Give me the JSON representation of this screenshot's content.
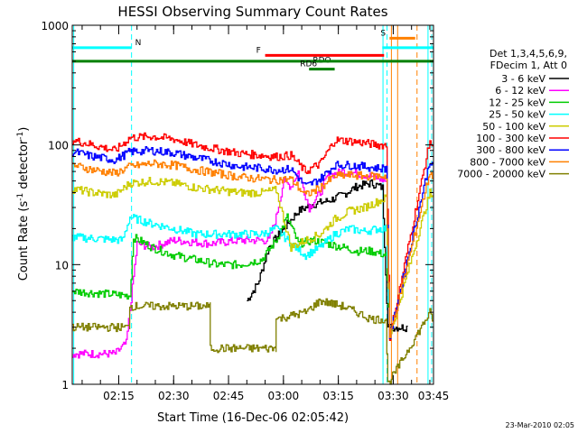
{
  "chart_data": {
    "type": "line",
    "title": "HESSI Observing Summary Count Rates",
    "xlabel": "Start Time (16-Dec-06 02:05:42)",
    "ylabel_main": "Count Rate (s",
    "ylabel_sup1": "-1",
    "ylabel_mid": " detector",
    "ylabel_sup2": "-1",
    "ylabel_end": ")",
    "yscale": "log",
    "ylim": [
      1,
      1000
    ],
    "xlim_minutes": [
      2.3,
      101.0
    ],
    "x_ticks": [
      {
        "t": 15,
        "label": "02:15"
      },
      {
        "t": 30,
        "label": "02:30"
      },
      {
        "t": 45,
        "label": "02:45"
      },
      {
        "t": 60,
        "label": "03:00"
      },
      {
        "t": 75,
        "label": "03:15"
      },
      {
        "t": 90,
        "label": "03:30"
      },
      {
        "t": 105,
        "label": "03:45"
      }
    ],
    "y_ticks": [
      {
        "v": 1,
        "label": "1"
      },
      {
        "v": 10,
        "label": "10"
      },
      {
        "v": 100,
        "label": "100"
      },
      {
        "v": 1000,
        "label": "1000"
      }
    ],
    "legend_header": [
      "Det 1,3,4,5,6,9,",
      "FDecim 1, Att 0"
    ],
    "legend_position": "right",
    "series": [
      {
        "name": "3 - 6 keV",
        "color": "#000000",
        "points": [
          [
            50,
            5
          ],
          [
            53,
            7
          ],
          [
            56,
            14
          ],
          [
            60,
            20
          ],
          [
            64,
            28
          ],
          [
            68,
            32
          ],
          [
            72,
            34
          ],
          [
            76,
            38
          ],
          [
            80,
            45
          ],
          [
            84,
            48
          ],
          [
            87,
            44
          ],
          [
            88.5,
            3
          ],
          [
            94,
            3
          ]
        ]
      },
      {
        "name": "6 - 12 keV",
        "color": "#ff00ff",
        "points": [
          [
            2.3,
            1.8
          ],
          [
            14,
            1.8
          ],
          [
            17,
            2.2
          ],
          [
            20,
            15
          ],
          [
            24,
            14
          ],
          [
            30,
            16
          ],
          [
            40,
            15
          ],
          [
            48,
            16
          ],
          [
            56,
            16
          ],
          [
            58,
            25
          ],
          [
            60,
            50
          ],
          [
            62,
            45
          ],
          [
            64,
            60
          ],
          [
            67,
            30
          ],
          [
            70,
            40
          ],
          [
            72,
            55
          ],
          [
            76,
            60
          ],
          [
            80,
            58
          ],
          [
            84,
            55
          ],
          [
            88,
            50
          ],
          [
            89,
            2.5
          ]
        ]
      },
      {
        "name": "12 - 25 keV",
        "color": "#00cc00",
        "points": [
          [
            2.3,
            6
          ],
          [
            18,
            5.5
          ],
          [
            19,
            17
          ],
          [
            24,
            14
          ],
          [
            30,
            12
          ],
          [
            36,
            11
          ],
          [
            42,
            10
          ],
          [
            48,
            10
          ],
          [
            54,
            11
          ],
          [
            58,
            16
          ],
          [
            61,
            25
          ],
          [
            64,
            15
          ],
          [
            68,
            16
          ],
          [
            72,
            15
          ],
          [
            76,
            14
          ],
          [
            80,
            13
          ],
          [
            84,
            13
          ],
          [
            88,
            12
          ],
          [
            89,
            2.5
          ]
        ]
      },
      {
        "name": "25 - 50 keV",
        "color": "#00ffff",
        "points": [
          [
            2.3,
            17
          ],
          [
            16,
            16
          ],
          [
            18,
            25
          ],
          [
            24,
            22
          ],
          [
            30,
            20
          ],
          [
            36,
            18
          ],
          [
            42,
            18
          ],
          [
            48,
            18
          ],
          [
            54,
            18
          ],
          [
            58,
            20
          ],
          [
            62,
            15
          ],
          [
            66,
            12
          ],
          [
            70,
            14
          ],
          [
            74,
            18
          ],
          [
            78,
            20
          ],
          [
            82,
            19
          ],
          [
            86,
            20
          ],
          [
            88,
            20
          ],
          [
            89,
            2.5
          ]
        ]
      },
      {
        "name": "50 - 100 keV",
        "color": "#cccc00",
        "points": [
          [
            2.3,
            43
          ],
          [
            8,
            40
          ],
          [
            14,
            38
          ],
          [
            18,
            48
          ],
          [
            24,
            50
          ],
          [
            30,
            48
          ],
          [
            36,
            44
          ],
          [
            42,
            42
          ],
          [
            48,
            40
          ],
          [
            54,
            40
          ],
          [
            58,
            42
          ],
          [
            62,
            14
          ],
          [
            66,
            16
          ],
          [
            70,
            18
          ],
          [
            74,
            24
          ],
          [
            78,
            28
          ],
          [
            82,
            30
          ],
          [
            86,
            34
          ],
          [
            88,
            36
          ],
          [
            89,
            2.5
          ],
          [
            100,
            40
          ],
          [
            101,
            33
          ]
        ]
      },
      {
        "name": "100 - 300 keV",
        "color": "#ff0000",
        "points": [
          [
            2.3,
            110
          ],
          [
            8,
            100
          ],
          [
            14,
            90
          ],
          [
            18,
            115
          ],
          [
            24,
            118
          ],
          [
            30,
            112
          ],
          [
            36,
            100
          ],
          [
            42,
            92
          ],
          [
            48,
            85
          ],
          [
            54,
            82
          ],
          [
            58,
            80
          ],
          [
            62,
            82
          ],
          [
            66,
            60
          ],
          [
            70,
            70
          ],
          [
            74,
            110
          ],
          [
            78,
            108
          ],
          [
            82,
            104
          ],
          [
            86,
            100
          ],
          [
            88,
            100
          ],
          [
            89,
            2.5
          ],
          [
            100,
            110
          ],
          [
            101,
            85
          ]
        ]
      },
      {
        "name": "300 - 800 keV",
        "color": "#0000ff",
        "points": [
          [
            2.3,
            88
          ],
          [
            8,
            80
          ],
          [
            14,
            75
          ],
          [
            18,
            88
          ],
          [
            24,
            90
          ],
          [
            30,
            86
          ],
          [
            36,
            78
          ],
          [
            42,
            72
          ],
          [
            48,
            66
          ],
          [
            54,
            64
          ],
          [
            58,
            62
          ],
          [
            62,
            63
          ],
          [
            66,
            45
          ],
          [
            70,
            52
          ],
          [
            74,
            68
          ],
          [
            78,
            68
          ],
          [
            82,
            66
          ],
          [
            86,
            64
          ],
          [
            88,
            64
          ],
          [
            89,
            2.5
          ],
          [
            100,
            75
          ],
          [
            101,
            62
          ]
        ]
      },
      {
        "name": "800 - 7000 keV",
        "color": "#ff8000",
        "points": [
          [
            2.3,
            68
          ],
          [
            8,
            62
          ],
          [
            14,
            58
          ],
          [
            18,
            66
          ],
          [
            24,
            70
          ],
          [
            30,
            68
          ],
          [
            36,
            62
          ],
          [
            42,
            58
          ],
          [
            48,
            54
          ],
          [
            54,
            52
          ],
          [
            58,
            51
          ],
          [
            62,
            52
          ],
          [
            66,
            38
          ],
          [
            70,
            44
          ],
          [
            74,
            55
          ],
          [
            78,
            56
          ],
          [
            82,
            55
          ],
          [
            86,
            55
          ],
          [
            88,
            55
          ],
          [
            89,
            2.5
          ],
          [
            100,
            60
          ],
          [
            101,
            52
          ]
        ]
      },
      {
        "name": "7000 - 20000 keV",
        "color": "#808000",
        "points": [
          [
            2.3,
            3
          ],
          [
            18,
            3
          ],
          [
            18,
            4.5
          ],
          [
            40,
            4.5
          ],
          [
            40,
            2
          ],
          [
            58,
            2
          ],
          [
            58,
            3.5
          ],
          [
            66,
            4
          ],
          [
            70,
            5
          ],
          [
            76,
            4.5
          ],
          [
            80,
            4
          ],
          [
            84,
            3.5
          ],
          [
            88,
            3.5
          ],
          [
            88.5,
            1
          ],
          [
            100,
            4
          ],
          [
            101,
            3
          ]
        ]
      }
    ],
    "markers": [
      {
        "label": "N",
        "color": "#00ffff",
        "t0": 2.3,
        "t1": 18.5,
        "level": 650
      },
      {
        "label": "",
        "color": "#00ffff",
        "t0": 87,
        "t1": 101,
        "level": 650
      },
      {
        "label": "S",
        "color": "#ff8000",
        "t0": 89,
        "t1": 96,
        "level": 780
      },
      {
        "label": "F",
        "color": "#ff0000",
        "t0": 55,
        "t1": 87.5,
        "level": 560
      },
      {
        "label": "RDO",
        "color": "#ff0000",
        "t0": 70,
        "t1": 70,
        "level": 560
      },
      {
        "label": "",
        "color": "#008000",
        "t0": 2.3,
        "t1": 101,
        "level": 500
      },
      {
        "label": "RD6",
        "color": "#008000",
        "t0": 67,
        "t1": 74,
        "level": 430
      }
    ],
    "vlines": [
      {
        "t": 2.7,
        "color": "#00ffff",
        "style": "solid"
      },
      {
        "t": 18.5,
        "color": "#00ffff",
        "style": "dashed"
      },
      {
        "t": 87.2,
        "color": "#00ffff",
        "style": "solid"
      },
      {
        "t": 88.3,
        "color": "#00ffff",
        "style": "dashed"
      },
      {
        "t": 89.5,
        "color": "#ff8000",
        "style": "solid"
      },
      {
        "t": 91.2,
        "color": "#ff8000",
        "style": "solid"
      },
      {
        "t": 96.5,
        "color": "#ff8000",
        "style": "dashed"
      },
      {
        "t": 99.5,
        "color": "#00ffff",
        "style": "solid"
      },
      {
        "t": 100.5,
        "color": "#00ffff",
        "style": "dashed"
      }
    ]
  },
  "footer": {
    "date": "23-Mar-2010 02:05"
  }
}
